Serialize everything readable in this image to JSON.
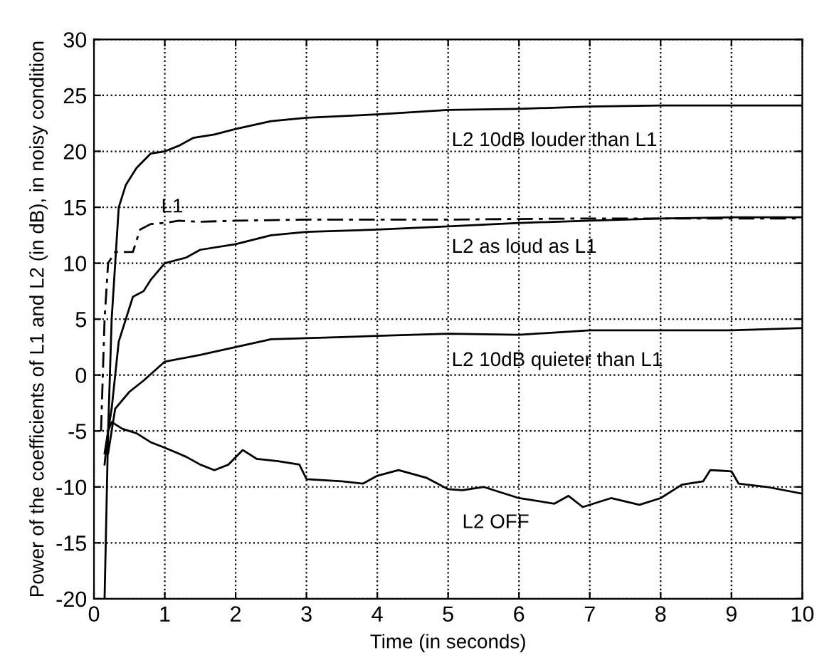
{
  "chart_data": {
    "type": "line",
    "xlabel": "Time (in seconds)",
    "ylabel": "Power of the coefficients of L1 and L2 (in dB), in noisy condition",
    "xlim": [
      0,
      10
    ],
    "ylim": [
      -20,
      30
    ],
    "xticks": [
      0,
      1,
      2,
      3,
      4,
      5,
      6,
      7,
      8,
      9,
      10
    ],
    "yticks": [
      -20,
      -15,
      -10,
      -5,
      0,
      5,
      10,
      15,
      20,
      25,
      30
    ],
    "grid": true,
    "marker": "none",
    "legend": false,
    "series": [
      {
        "name": "L2 10dB louder than L1",
        "color": "#000000",
        "line_style": "solid",
        "x": [
          0.15,
          0.2,
          0.25,
          0.3,
          0.35,
          0.45,
          0.6,
          0.8,
          1,
          1.2,
          1.4,
          1.7,
          2,
          2.5,
          3,
          4,
          5,
          6,
          7,
          8,
          10
        ],
        "values": [
          -20,
          -5,
          5,
          10,
          15,
          17,
          18.5,
          19.8,
          20,
          20.5,
          21.2,
          21.5,
          22,
          22.7,
          23,
          23.3,
          23.7,
          23.8,
          24,
          24.1,
          24.1
        ]
      },
      {
        "name": "L1",
        "color": "#000000",
        "line_style": "dashed",
        "x": [
          0.1,
          0.15,
          0.2,
          0.3,
          0.55,
          0.65,
          0.8,
          1,
          1.2,
          1.5,
          2,
          3,
          5,
          7,
          10
        ],
        "values": [
          -5,
          5,
          10,
          11,
          11,
          13,
          13.5,
          13.6,
          13.8,
          13.7,
          13.8,
          13.9,
          13.9,
          14,
          14
        ]
      },
      {
        "name": "L2 as loud as L1",
        "color": "#000000",
        "line_style": "solid",
        "x": [
          0.15,
          0.25,
          0.35,
          0.45,
          0.55,
          0.7,
          0.8,
          1,
          1.3,
          1.5,
          2,
          2.5,
          3,
          4,
          5,
          6,
          7,
          8,
          9,
          10
        ],
        "values": [
          -7,
          -3,
          3,
          5,
          7,
          7.5,
          8.5,
          10,
          10.5,
          11.2,
          11.7,
          12.5,
          12.8,
          13,
          13.3,
          13.6,
          13.8,
          14,
          14.1,
          14.1
        ]
      },
      {
        "name": "L2 10dB quieter than L1",
        "color": "#000000",
        "line_style": "solid",
        "x": [
          0.2,
          0.3,
          0.5,
          0.7,
          1,
          1.5,
          2,
          2.5,
          3,
          3.5,
          4,
          5,
          6,
          7,
          8,
          9,
          10
        ],
        "values": [
          -7,
          -3,
          -1.5,
          -0.5,
          1.2,
          1.8,
          2.5,
          3.2,
          3.3,
          3.4,
          3.5,
          3.7,
          3.6,
          4,
          4,
          4,
          4.2
        ]
      },
      {
        "name": "L2 OFF",
        "color": "#000000",
        "line_style": "solid",
        "x": [
          0.15,
          0.2,
          0.25,
          0.4,
          0.6,
          0.8,
          1,
          1.3,
          1.5,
          1.7,
          1.9,
          2.1,
          2.3,
          2.6,
          2.9,
          3,
          3.5,
          3.8,
          4,
          4.3,
          4.7,
          5,
          5.2,
          5.5,
          6,
          6.5,
          6.7,
          6.9,
          7.3,
          7.7,
          8,
          8.3,
          8.6,
          8.7,
          9,
          9.1,
          9.5,
          10
        ],
        "values": [
          -8,
          -5,
          -4.2,
          -4.8,
          -5.2,
          -6,
          -6.5,
          -7.3,
          -8,
          -8.5,
          -8,
          -6.7,
          -7.5,
          -7.7,
          -8,
          -9.3,
          -9.5,
          -9.7,
          -9,
          -8.5,
          -9.2,
          -10.2,
          -10.3,
          -10,
          -11,
          -11.5,
          -10.8,
          -11.8,
          -11,
          -11.6,
          -11,
          -9.8,
          -9.5,
          -8.5,
          -8.6,
          -9.7,
          -10,
          -10.6
        ]
      }
    ]
  }
}
